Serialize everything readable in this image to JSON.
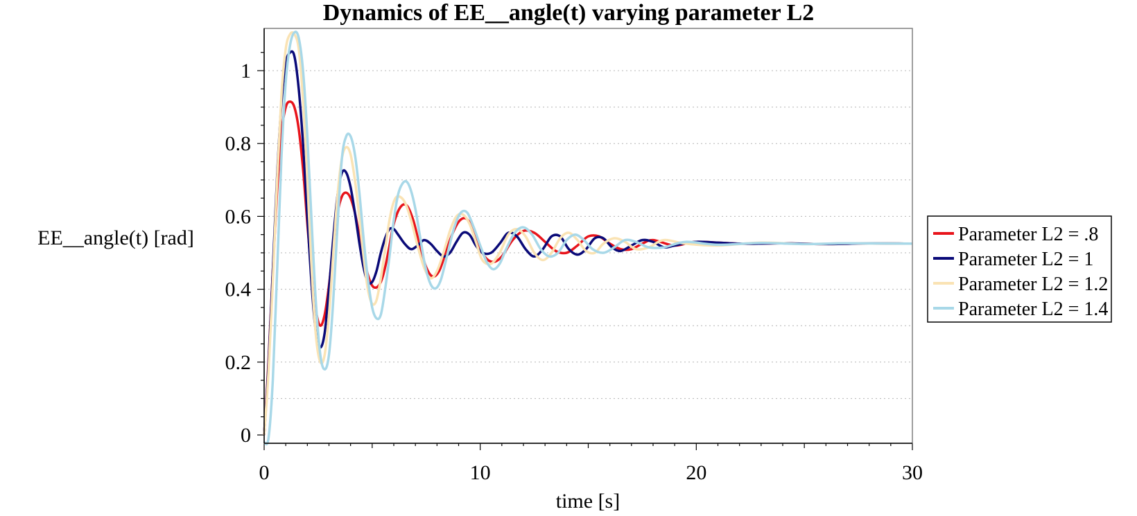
{
  "chart_data": {
    "type": "line",
    "title": "Dynamics of EE__angle(t) varying parameter L2",
    "xlabel": "time [s]",
    "ylabel": "EE__angle(t) [rad]",
    "xlim": [
      0,
      30
    ],
    "ylim": [
      -0.02,
      1.11
    ],
    "xticks": [
      0,
      10,
      20,
      30
    ],
    "xtick_labels": [
      "0",
      "10",
      "20",
      "30"
    ],
    "yticks": [
      0,
      0.2,
      0.4,
      0.6,
      0.8,
      1
    ],
    "ytick_labels": [
      "0",
      "0.2",
      "0.4",
      "0.6",
      "0.8",
      "1"
    ],
    "grid": "horizontal dotted",
    "legend_position": "right",
    "series": [
      {
        "name": "Parameter L2 = .8",
        "color": "#e8141b",
        "x": [
          0,
          0.2,
          0.4,
          0.6,
          0.8,
          1.0,
          1.2,
          1.4,
          1.6,
          1.8,
          2.0,
          2.2,
          2.4,
          2.6,
          2.8,
          3.0,
          3.2,
          3.4,
          3.6,
          3.8,
          4.0,
          4.2,
          4.4,
          4.6,
          4.8,
          5.0,
          5.2,
          5.4,
          5.6,
          5.8,
          6.0,
          6.3,
          6.6,
          6.9,
          7.2,
          7.5,
          7.8,
          8.1,
          8.4,
          8.7,
          9.0,
          9.3,
          9.6,
          9.9,
          10.2,
          10.6,
          11.0,
          11.5,
          12.0,
          12.5,
          13.0,
          13.5,
          14.0,
          14.5,
          15.0,
          15.5,
          16.0,
          16.5,
          17.0,
          17.5,
          18.0,
          19.0,
          20.0,
          22.0,
          24.0,
          26.0,
          28.0,
          30.0
        ],
        "values": [
          0.0,
          0.2,
          0.45,
          0.67,
          0.83,
          0.9,
          0.915,
          0.9,
          0.84,
          0.73,
          0.58,
          0.44,
          0.34,
          0.3,
          0.33,
          0.41,
          0.52,
          0.61,
          0.655,
          0.665,
          0.65,
          0.61,
          0.55,
          0.49,
          0.44,
          0.41,
          0.405,
          0.42,
          0.46,
          0.52,
          0.58,
          0.625,
          0.63,
          0.59,
          0.52,
          0.46,
          0.435,
          0.45,
          0.5,
          0.55,
          0.585,
          0.595,
          0.575,
          0.53,
          0.49,
          0.475,
          0.49,
          0.535,
          0.56,
          0.555,
          0.53,
          0.505,
          0.5,
          0.52,
          0.545,
          0.545,
          0.525,
          0.51,
          0.51,
          0.525,
          0.535,
          0.52,
          0.53,
          0.525,
          0.526,
          0.524,
          0.526,
          0.525
        ]
      },
      {
        "name": "Parameter L2 = 1",
        "color": "#0a0a78",
        "x": [
          0,
          0.2,
          0.4,
          0.6,
          0.8,
          1.0,
          1.2,
          1.4,
          1.6,
          1.8,
          2.0,
          2.2,
          2.4,
          2.6,
          2.8,
          3.0,
          3.2,
          3.4,
          3.6,
          3.8,
          4.0,
          4.2,
          4.4,
          4.6,
          4.8,
          5.0,
          5.2,
          5.4,
          5.6,
          5.8,
          6.0,
          6.2,
          6.5,
          6.8,
          7.1,
          7.4,
          7.7,
          8.0,
          8.3,
          8.6,
          8.9,
          9.2,
          9.5,
          9.8,
          10.1,
          10.5,
          10.9,
          11.3,
          11.7,
          12.1,
          12.5,
          12.9,
          13.3,
          13.7,
          14.1,
          14.5,
          14.9,
          15.3,
          15.7,
          16.1,
          16.5,
          17.0,
          17.5,
          18.0,
          18.5,
          19.0,
          20.0,
          22.0,
          24.0,
          26.0,
          28.0,
          30.0
        ],
        "values": [
          0.0,
          0.19,
          0.45,
          0.71,
          0.91,
          1.02,
          1.05,
          1.04,
          0.95,
          0.8,
          0.6,
          0.41,
          0.28,
          0.24,
          0.28,
          0.4,
          0.54,
          0.66,
          0.72,
          0.72,
          0.68,
          0.61,
          0.53,
          0.46,
          0.42,
          0.42,
          0.45,
          0.5,
          0.54,
          0.565,
          0.565,
          0.55,
          0.525,
          0.51,
          0.52,
          0.535,
          0.525,
          0.505,
          0.49,
          0.5,
          0.53,
          0.555,
          0.55,
          0.52,
          0.5,
          0.5,
          0.525,
          0.555,
          0.545,
          0.51,
          0.49,
          0.51,
          0.545,
          0.545,
          0.51,
          0.495,
          0.51,
          0.54,
          0.54,
          0.515,
          0.505,
          0.52,
          0.535,
          0.53,
          0.515,
          0.52,
          0.53,
          0.525,
          0.526,
          0.524,
          0.526,
          0.525
        ]
      },
      {
        "name": "Parameter L2 = 1.2",
        "color": "#fae3b4",
        "x": [
          0,
          0.2,
          0.4,
          0.6,
          0.8,
          1.0,
          1.2,
          1.4,
          1.6,
          1.8,
          2.0,
          2.2,
          2.4,
          2.6,
          2.8,
          3.0,
          3.2,
          3.4,
          3.6,
          3.8,
          4.0,
          4.2,
          4.4,
          4.6,
          4.8,
          5.0,
          5.2,
          5.4,
          5.6,
          5.8,
          6.0,
          6.2,
          6.5,
          6.8,
          7.1,
          7.4,
          7.7,
          8.0,
          8.3,
          8.6,
          8.9,
          9.2,
          9.5,
          9.8,
          10.1,
          10.5,
          10.9,
          11.3,
          11.7,
          12.1,
          12.5,
          12.9,
          13.3,
          13.7,
          14.1,
          14.5,
          14.9,
          15.3,
          15.7,
          16.2,
          16.7,
          17.2,
          17.8,
          18.5,
          19.5,
          21.0,
          23.0,
          25.0,
          27.0,
          30.0
        ],
        "values": [
          0.0,
          0.17,
          0.42,
          0.7,
          0.93,
          1.06,
          1.1,
          1.1,
          1.06,
          0.92,
          0.7,
          0.45,
          0.27,
          0.2,
          0.22,
          0.33,
          0.5,
          0.66,
          0.76,
          0.79,
          0.77,
          0.7,
          0.6,
          0.49,
          0.4,
          0.36,
          0.37,
          0.43,
          0.51,
          0.59,
          0.64,
          0.655,
          0.64,
          0.59,
          0.52,
          0.46,
          0.43,
          0.45,
          0.5,
          0.56,
          0.6,
          0.605,
          0.58,
          0.53,
          0.48,
          0.47,
          0.5,
          0.55,
          0.565,
          0.545,
          0.5,
          0.48,
          0.5,
          0.54,
          0.555,
          0.535,
          0.505,
          0.5,
          0.525,
          0.54,
          0.53,
          0.51,
          0.515,
          0.535,
          0.525,
          0.52,
          0.528,
          0.524,
          0.526,
          0.525
        ]
      },
      {
        "name": "Parameter L2 = 1.4",
        "color": "#a8d8e8",
        "x": [
          0,
          0.2,
          0.4,
          0.6,
          0.8,
          1.0,
          1.2,
          1.4,
          1.6,
          1.8,
          2.0,
          2.2,
          2.4,
          2.6,
          2.8,
          3.0,
          3.2,
          3.4,
          3.6,
          3.8,
          4.0,
          4.2,
          4.4,
          4.6,
          4.8,
          5.0,
          5.2,
          5.4,
          5.6,
          5.8,
          6.0,
          6.2,
          6.4,
          6.6,
          6.8,
          7.0,
          7.2,
          7.4,
          7.6,
          7.8,
          8.0,
          8.2,
          8.5,
          8.8,
          9.1,
          9.4,
          9.7,
          10.0,
          10.3,
          10.6,
          10.9,
          11.2,
          11.6,
          12.0,
          12.4,
          12.8,
          13.2,
          13.6,
          14.0,
          14.4,
          14.8,
          15.2,
          15.7,
          16.2,
          16.7,
          17.2,
          17.8,
          18.5,
          19.5,
          21.0,
          23.0,
          25.0,
          27.0,
          30.0
        ],
        "values": [
          -0.02,
          -0.01,
          0.15,
          0.45,
          0.76,
          0.97,
          1.07,
          1.105,
          1.09,
          1.0,
          0.82,
          0.58,
          0.36,
          0.22,
          0.18,
          0.22,
          0.37,
          0.58,
          0.76,
          0.82,
          0.82,
          0.77,
          0.67,
          0.54,
          0.43,
          0.35,
          0.32,
          0.33,
          0.4,
          0.49,
          0.59,
          0.66,
          0.69,
          0.695,
          0.67,
          0.62,
          0.55,
          0.48,
          0.43,
          0.405,
          0.405,
          0.43,
          0.5,
          0.57,
          0.61,
          0.61,
          0.57,
          0.52,
          0.475,
          0.455,
          0.47,
          0.51,
          0.555,
          0.57,
          0.55,
          0.51,
          0.49,
          0.5,
          0.535,
          0.55,
          0.535,
          0.51,
          0.5,
          0.515,
          0.535,
          0.53,
          0.515,
          0.515,
          0.53,
          0.522,
          0.527,
          0.524,
          0.526,
          0.525
        ]
      }
    ]
  }
}
